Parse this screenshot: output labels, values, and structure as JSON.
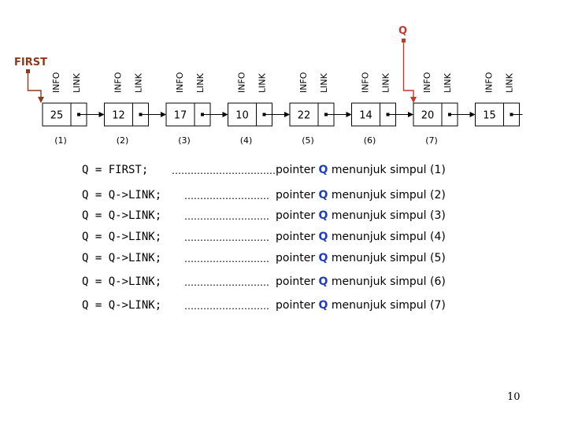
{
  "pointer_q_label": "Q",
  "first_label": "FIRST",
  "info_label": "INFO",
  "link_label": "LINK",
  "nodes": [
    {
      "value": "25",
      "index": "(1)"
    },
    {
      "value": "12",
      "index": "(2)"
    },
    {
      "value": "17",
      "index": "(3)"
    },
    {
      "value": "10",
      "index": "(4)"
    },
    {
      "value": "22",
      "index": "(5)"
    },
    {
      "value": "14",
      "index": "(6)"
    },
    {
      "value": "20",
      "index": "(7)"
    },
    {
      "value": "15",
      "index": ""
    }
  ],
  "steps": [
    {
      "stmt": "Q = FIRST;",
      "dots": "……………………………",
      "desc_prefix": "pointer",
      "desc_q": "Q",
      "desc_suffix": "menunjuk simpul (1)"
    },
    {
      "stmt": "Q = Q->LINK;",
      "dots": "………………………",
      "desc_prefix": "pointer",
      "desc_q": "Q",
      "desc_suffix": "menunjuk simpul (2)"
    },
    {
      "stmt": "Q = Q->LINK;",
      "dots": "………………………",
      "desc_prefix": "pointer",
      "desc_q": "Q",
      "desc_suffix": "menunjuk simpul (3)"
    },
    {
      "stmt": "Q = Q->LINK;",
      "dots": "………………………",
      "desc_prefix": "pointer",
      "desc_q": "Q",
      "desc_suffix": "menunjuk simpul (4)"
    },
    {
      "stmt": "Q = Q->LINK;",
      "dots": "………………………",
      "desc_prefix": "pointer",
      "desc_q": "Q",
      "desc_suffix": "menunjuk simpul (5)"
    },
    {
      "stmt": "Q = Q->LINK;",
      "dots": "………………………",
      "desc_prefix": "pointer",
      "desc_q": "Q",
      "desc_suffix": "menunjuk simpul (6)"
    },
    {
      "stmt": "Q = Q->LINK;",
      "dots": "………………………",
      "desc_prefix": "pointer",
      "desc_q": "Q",
      "desc_suffix": "menunjuk simpul (7)"
    }
  ],
  "page_number": "10",
  "colors": {
    "first": "#8b3a1e",
    "pointer_q": "#c0392b",
    "q_text": "#1f3fbf"
  }
}
